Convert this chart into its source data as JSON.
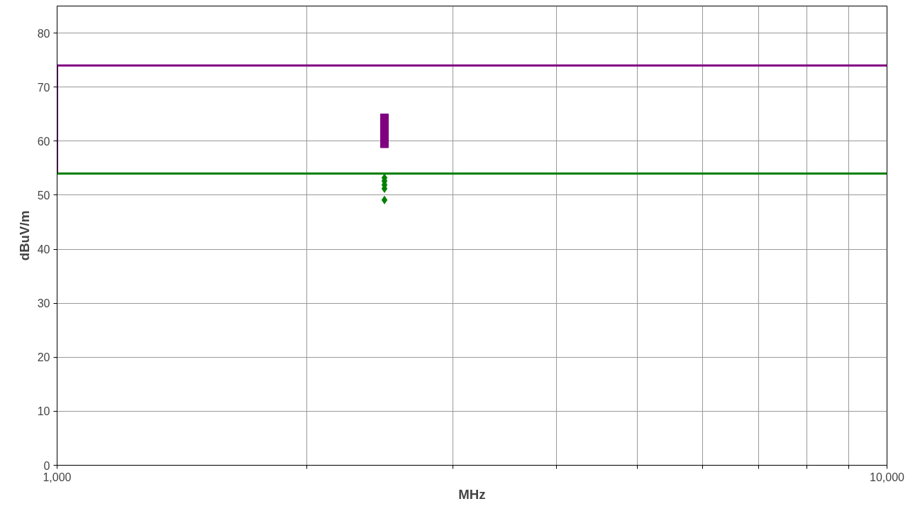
{
  "chart_data": {
    "type": "scatter",
    "xlabel": "MHz",
    "ylabel": "dBuV/m",
    "log": "x",
    "grid": true,
    "xlim": [
      1000,
      10000
    ],
    "ylim": [
      0,
      85
    ],
    "xticks": [
      {
        "value": 1000,
        "label": "1,000"
      },
      {
        "value": 2000,
        "label": null
      },
      {
        "value": 3000,
        "label": null
      },
      {
        "value": 4000,
        "label": null
      },
      {
        "value": 5000,
        "label": null
      },
      {
        "value": 6000,
        "label": null
      },
      {
        "value": 7000,
        "label": null
      },
      {
        "value": 8000,
        "label": null
      },
      {
        "value": 9000,
        "label": null
      },
      {
        "value": 10000,
        "label": "10,000"
      }
    ],
    "yticks": [
      0,
      10,
      20,
      30,
      40,
      50,
      60,
      70,
      80
    ],
    "series": [
      {
        "type": "line",
        "color": "#800080",
        "x": [
          1000,
          1000,
          10000
        ],
        "values": [
          54,
          74,
          74
        ]
      },
      {
        "type": "line",
        "color": "#008000",
        "x": [
          1000,
          10000
        ],
        "values": [
          54,
          54
        ]
      },
      {
        "color": "#800080",
        "marker": "square",
        "x": [
          2480,
          2480,
          2480,
          2480,
          2480,
          2480
        ],
        "values": [
          64.3,
          63.5,
          62.5,
          61.5,
          60.5,
          59.5
        ]
      },
      {
        "color": "#008000",
        "marker": "diamond",
        "x": [
          2480,
          2480,
          2480,
          2480,
          2480
        ],
        "values": [
          53.2,
          52.6,
          51.9,
          51.2,
          49.1
        ]
      }
    ]
  }
}
